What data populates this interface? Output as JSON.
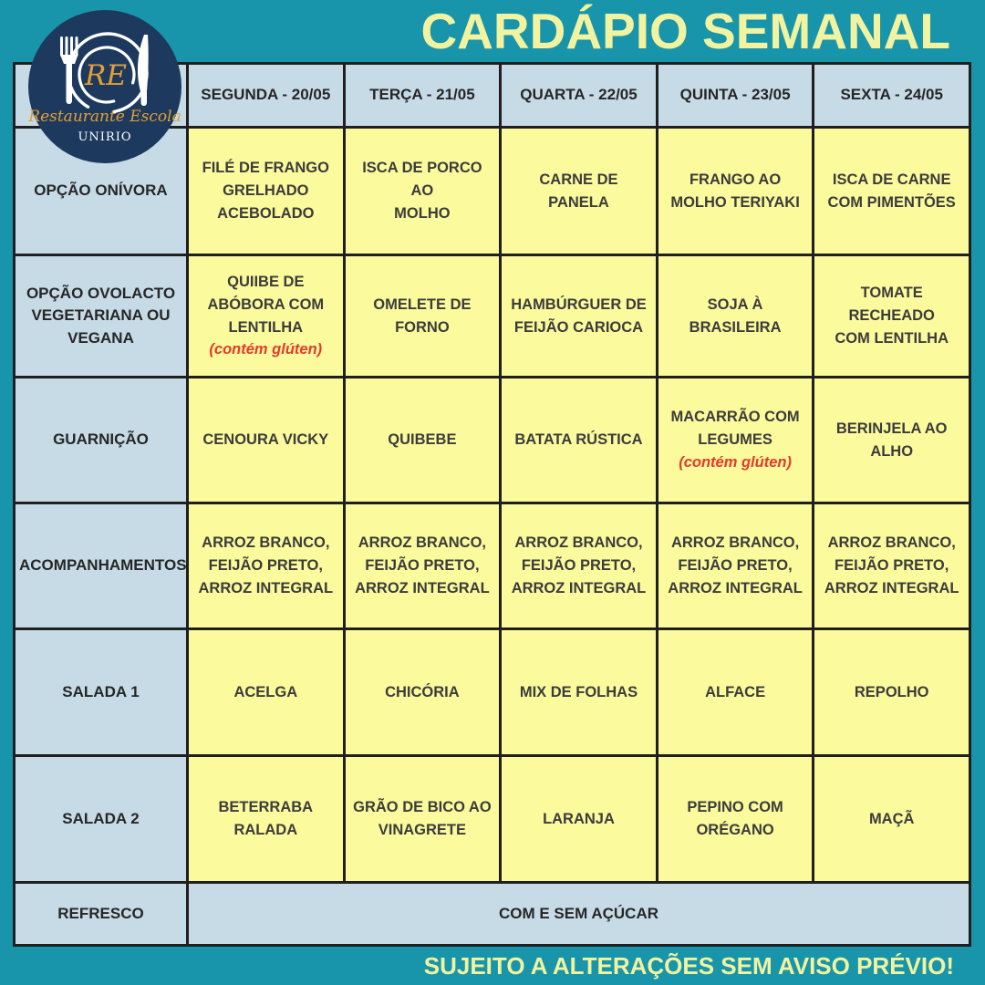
{
  "title": "CARDÁPIO SEMANAL",
  "footer": "SUJEITO A ALTERAÇÕES SEM AVISO PRÉVIO!",
  "logo": {
    "initials": "RE",
    "name": "Restaurante Escola",
    "org": "UNIRIO"
  },
  "colors": {
    "background_teal": "#1895aa",
    "logo_navy": "#1d3a5e",
    "header_blue": "#c6dbe6",
    "cell_yellow": "#fbfa9c",
    "title_yellow": "#f2f3a0",
    "note_red": "#e6392c",
    "logo_orange": "#e59e35",
    "grid_border": "#1f1f1f"
  },
  "menu": {
    "day_headers": [
      "SEGUNDA - 20/05",
      "TERÇA - 21/05",
      "QUARTA - 22/05",
      "QUINTA - 23/05",
      "SEXTA - 24/05"
    ],
    "rows": [
      {
        "label": "OPÇÃO ONÍVORA",
        "cells": [
          {
            "text": "FILÉ DE FRANGO\nGRELHADO\nACEBOLADO"
          },
          {
            "text": "ISCA DE PORCO AO\nMOLHO"
          },
          {
            "text": "CARNE DE PANELA"
          },
          {
            "text": "FRANGO AO\nMOLHO TERIYAKI"
          },
          {
            "text": "ISCA DE CARNE\nCOM PIMENTÕES"
          }
        ]
      },
      {
        "label": "OPÇÃO OVOLACTO\nVEGETARIANA OU\nVEGANA",
        "cells": [
          {
            "text": "QUIIBE DE\nABÓBORA COM\nLENTILHA",
            "note": "(contém glúten)"
          },
          {
            "text": "OMELETE DE\nFORNO"
          },
          {
            "text": "HAMBÚRGUER DE\nFEIJÃO CARIOCA"
          },
          {
            "text": "SOJA À BRASILEIRA"
          },
          {
            "text": "TOMATE RECHEADO\nCOM LENTILHA"
          }
        ]
      },
      {
        "label": "GUARNIÇÃO",
        "cells": [
          {
            "text": "CENOURA VICKY"
          },
          {
            "text": "QUIBEBE"
          },
          {
            "text": "BATATA RÚSTICA"
          },
          {
            "text": "MACARRÃO COM\nLEGUMES",
            "note": "(contém glúten)"
          },
          {
            "text": "BERINJELA AO\nALHO"
          }
        ]
      },
      {
        "label": "ACOMPANHAMENTOS",
        "cells": [
          {
            "text": "ARROZ BRANCO,\nFEIJÃO PRETO,\nARROZ INTEGRAL"
          },
          {
            "text": "ARROZ BRANCO,\nFEIJÃO PRETO,\nARROZ INTEGRAL"
          },
          {
            "text": "ARROZ BRANCO,\nFEIJÃO PRETO,\nARROZ INTEGRAL"
          },
          {
            "text": "ARROZ BRANCO,\nFEIJÃO PRETO,\nARROZ INTEGRAL"
          },
          {
            "text": "ARROZ BRANCO,\nFEIJÃO PRETO,\nARROZ INTEGRAL"
          }
        ]
      },
      {
        "label": "SALADA 1",
        "cells": [
          {
            "text": "ACELGA"
          },
          {
            "text": "CHICÓRIA"
          },
          {
            "text": "MIX DE FOLHAS"
          },
          {
            "text": "ALFACE"
          },
          {
            "text": "REPOLHO"
          }
        ]
      },
      {
        "label": "SALADA 2",
        "cells": [
          {
            "text": "BETERRABA\nRALADA"
          },
          {
            "text": "GRÃO DE BICO AO\nVINAGRETE"
          },
          {
            "text": "LARANJA"
          },
          {
            "text": "PEPINO COM\nORÉGANO"
          },
          {
            "text": "MAÇÃ"
          }
        ]
      },
      {
        "label": "REFRESCO",
        "merged_cell": "COM E SEM AÇÚCAR"
      }
    ]
  }
}
